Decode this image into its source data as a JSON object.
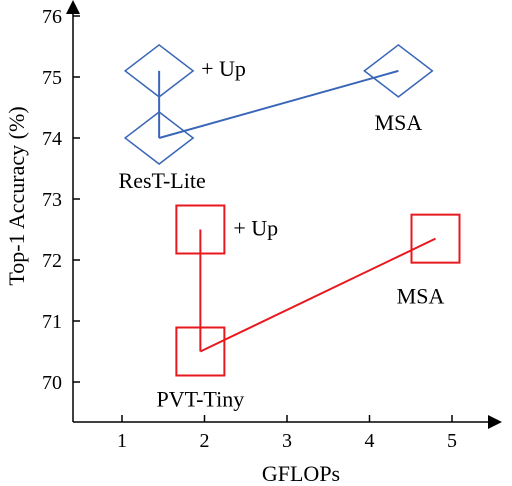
{
  "chart_data": {
    "type": "scatter",
    "xlabel": "GFLOPs",
    "ylabel": "Top-1 Accuracy (%)",
    "xlim": [
      0.6,
      5.5
    ],
    "ylim": [
      69.3,
      76.3
    ],
    "xticks": [
      1,
      2,
      3,
      4,
      5
    ],
    "yticks": [
      70,
      71,
      72,
      73,
      74,
      75,
      76
    ],
    "grid": false,
    "series": [
      {
        "name": "ResT-Lite",
        "color": "#3a66b8",
        "marker": "diamond",
        "points": [
          {
            "x": 1.45,
            "y": 74.0,
            "label": "ResT-Lite"
          },
          {
            "x": 1.45,
            "y": 75.1,
            "label": "+ Up"
          },
          {
            "x": 4.35,
            "y": 75.1,
            "label": "MSA"
          }
        ]
      },
      {
        "name": "PVT-Tiny",
        "color": "#e8191e",
        "marker": "square",
        "points": [
          {
            "x": 1.95,
            "y": 70.5,
            "label": "PVT-Tiny"
          },
          {
            "x": 1.95,
            "y": 72.5,
            "label": "+ Up"
          },
          {
            "x": 4.8,
            "y": 72.35,
            "label": "MSA"
          }
        ]
      }
    ]
  }
}
